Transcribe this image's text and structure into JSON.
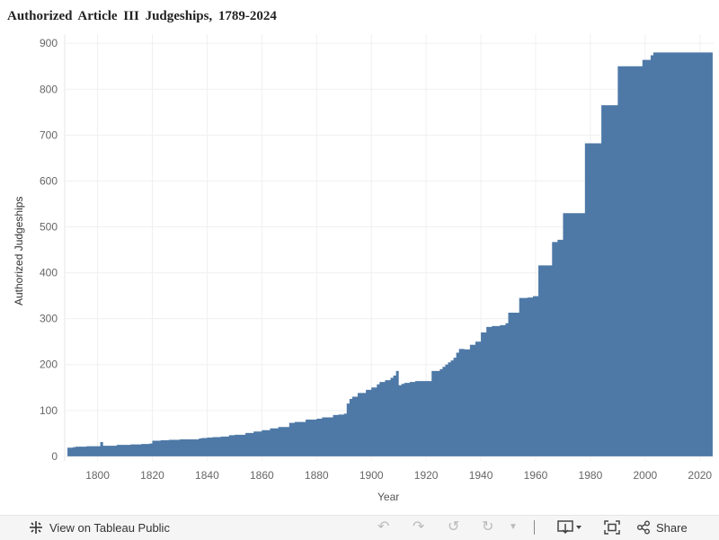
{
  "title": "Authorized  Article  III  Judgeships,  1789-2024",
  "toolbar": {
    "view_label": "View on Tableau Public",
    "share_label": "Share",
    "icons": [
      "tableau-logo-icon",
      "undo-icon",
      "redo-icon",
      "revert-icon",
      "refresh-icon",
      "pause-dropdown-icon",
      "download-icon",
      "fullscreen-icon",
      "share-icon"
    ]
  },
  "chart_data": {
    "type": "area",
    "title": "Authorized  Article  III  Judgeships,  1789-2024",
    "xlabel": "Year",
    "ylabel": "Authorized Judgeships",
    "xlim": [
      1788,
      2025
    ],
    "ylim": [
      -10,
      920
    ],
    "xticks": [
      1800,
      1820,
      1840,
      1860,
      1880,
      1900,
      1920,
      1940,
      1960,
      1980,
      2000,
      2020
    ],
    "yticks": [
      0,
      100,
      200,
      300,
      400,
      500,
      600,
      700,
      800,
      900
    ],
    "grid": true,
    "color": "#4e79a7",
    "step_points": [
      [
        1789,
        19
      ],
      [
        1790,
        19
      ],
      [
        1791,
        20
      ],
      [
        1792,
        21
      ],
      [
        1796,
        22
      ],
      [
        1801,
        31
      ],
      [
        1802,
        23
      ],
      [
        1807,
        25
      ],
      [
        1812,
        26
      ],
      [
        1816,
        27
      ],
      [
        1819,
        28
      ],
      [
        1820,
        34
      ],
      [
        1823,
        35
      ],
      [
        1826,
        36
      ],
      [
        1830,
        37
      ],
      [
        1837,
        39
      ],
      [
        1838,
        40
      ],
      [
        1840,
        41
      ],
      [
        1842,
        42
      ],
      [
        1845,
        43
      ],
      [
        1848,
        46
      ],
      [
        1850,
        47
      ],
      [
        1854,
        51
      ],
      [
        1857,
        54
      ],
      [
        1860,
        57
      ],
      [
        1863,
        61
      ],
      [
        1866,
        64
      ],
      [
        1870,
        73
      ],
      [
        1872,
        75
      ],
      [
        1876,
        80
      ],
      [
        1880,
        82
      ],
      [
        1882,
        85
      ],
      [
        1886,
        90
      ],
      [
        1888,
        91
      ],
      [
        1890,
        93
      ],
      [
        1891,
        115
      ],
      [
        1892,
        125
      ],
      [
        1893,
        130
      ],
      [
        1895,
        138
      ],
      [
        1898,
        145
      ],
      [
        1900,
        150
      ],
      [
        1902,
        157
      ],
      [
        1903,
        162
      ],
      [
        1905,
        166
      ],
      [
        1907,
        171
      ],
      [
        1908,
        176
      ],
      [
        1909,
        186
      ],
      [
        1910,
        155
      ],
      [
        1911,
        158
      ],
      [
        1912,
        160
      ],
      [
        1914,
        162
      ],
      [
        1916,
        164
      ],
      [
        1922,
        186
      ],
      [
        1925,
        190
      ],
      [
        1926,
        195
      ],
      [
        1927,
        200
      ],
      [
        1928,
        205
      ],
      [
        1929,
        209
      ],
      [
        1930,
        215
      ],
      [
        1931,
        226
      ],
      [
        1932,
        234
      ],
      [
        1934,
        233
      ],
      [
        1936,
        243
      ],
      [
        1938,
        250
      ],
      [
        1940,
        270
      ],
      [
        1942,
        282
      ],
      [
        1944,
        284
      ],
      [
        1947,
        286
      ],
      [
        1949,
        290
      ],
      [
        1950,
        313
      ],
      [
        1954,
        345
      ],
      [
        1957,
        346
      ],
      [
        1959,
        349
      ],
      [
        1961,
        416
      ],
      [
        1966,
        467
      ],
      [
        1968,
        472
      ],
      [
        1970,
        530
      ],
      [
        1978,
        682
      ],
      [
        1984,
        765
      ],
      [
        1990,
        850
      ],
      [
        1998,
        850
      ],
      [
        1999,
        864
      ],
      [
        2002,
        874
      ],
      [
        2003,
        880
      ],
      [
        2024,
        880
      ]
    ]
  }
}
